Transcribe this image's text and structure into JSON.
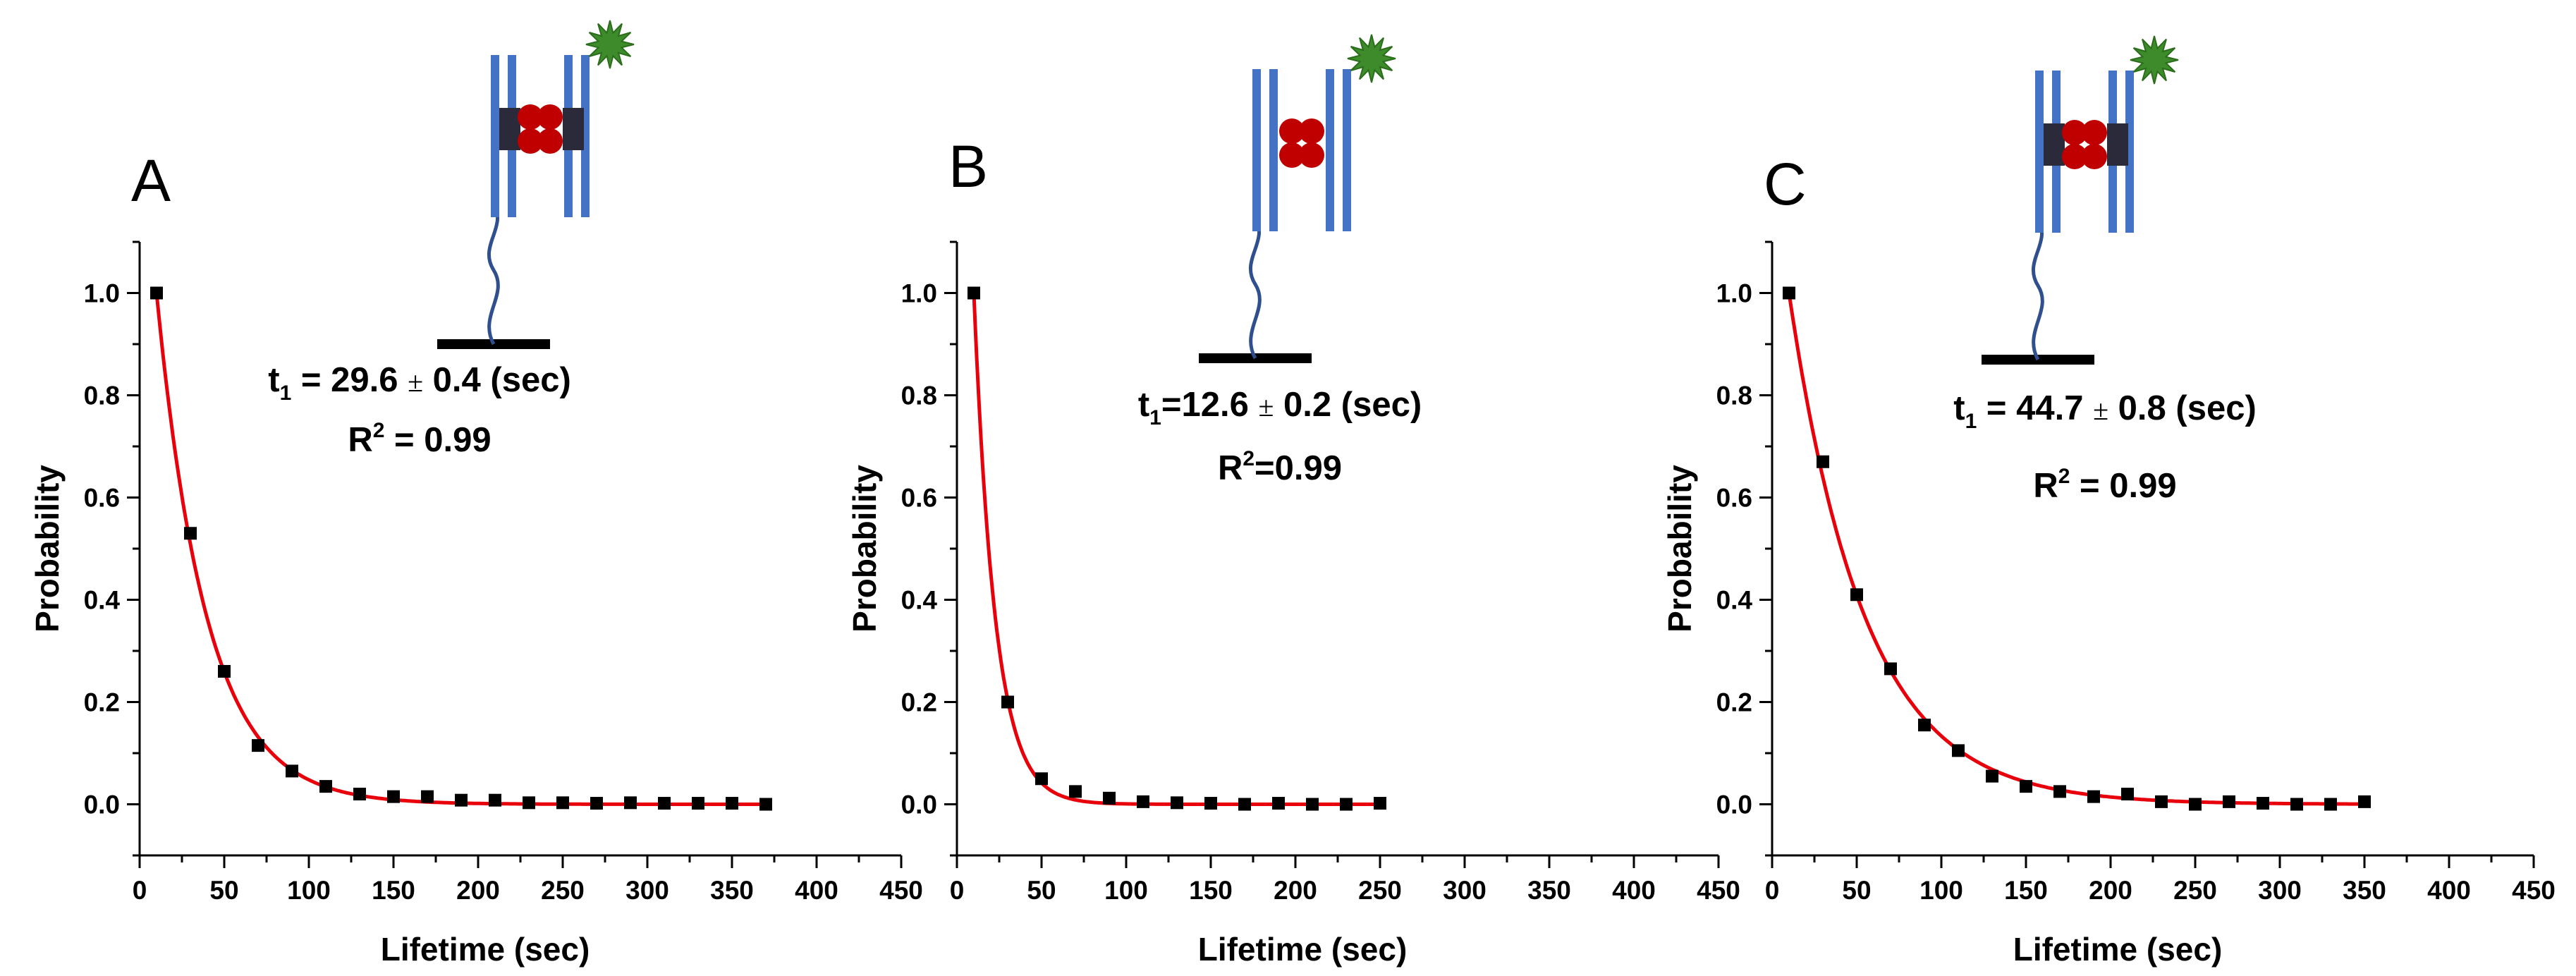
{
  "colors": {
    "fit": "#e8000b",
    "points": "#000000",
    "dna": "#4472c4",
    "protein": "#c00000",
    "tether": "#2f4f8f",
    "dye": "#3d8b2a",
    "block": "#2a2a3a"
  },
  "chart_data": [
    {
      "type": "scatter",
      "panel": "A",
      "xlabel": "Lifetime (sec)",
      "ylabel": "Probability",
      "xlim": [
        0,
        450
      ],
      "ylim": [
        -0.1,
        1.1
      ],
      "xticks": [
        0,
        50,
        100,
        150,
        200,
        250,
        300,
        350,
        400,
        450
      ],
      "yticks": [
        0.0,
        0.2,
        0.4,
        0.6,
        0.8,
        1.0
      ],
      "x": [
        10,
        30,
        50,
        70,
        90,
        110,
        130,
        150,
        170,
        190,
        210,
        230,
        250,
        270,
        290,
        310,
        330,
        350,
        370
      ],
      "y": [
        1.0,
        0.53,
        0.26,
        0.115,
        0.065,
        0.035,
        0.02,
        0.015,
        0.015,
        0.008,
        0.008,
        0.003,
        0.003,
        0.002,
        0.003,
        0.002,
        0.002,
        0.002,
        0.0
      ],
      "fit": {
        "model": "exponential decay",
        "tau": 29.6,
        "x0": 10,
        "x_end": 370
      },
      "annotation": {
        "t": "t",
        "sub": "1",
        "pre": " = 29.6 ",
        "pm": "±",
        "post": " 0.4 (sec)",
        "r2": "R",
        "r2_sup": "2",
        "r2_val": " = 0.99"
      },
      "schematic": {
        "inner_blocks": true
      }
    },
    {
      "type": "scatter",
      "panel": "B",
      "xlabel": "Lifetime (sec)",
      "ylabel": "Probability",
      "xlim": [
        0,
        450
      ],
      "ylim": [
        -0.1,
        1.1
      ],
      "xticks": [
        0,
        50,
        100,
        150,
        200,
        250,
        300,
        350,
        400,
        450
      ],
      "yticks": [
        0.0,
        0.2,
        0.4,
        0.6,
        0.8,
        1.0
      ],
      "x": [
        10,
        30,
        50,
        70,
        90,
        110,
        130,
        150,
        170,
        190,
        210,
        230,
        250
      ],
      "y": [
        1.0,
        0.2,
        0.05,
        0.025,
        0.012,
        0.005,
        0.003,
        0.002,
        0.0,
        0.002,
        0.0,
        0.0,
        0.002
      ],
      "fit": {
        "model": "exponential decay",
        "tau": 12.6,
        "x0": 10,
        "x_end": 250
      },
      "annotation": {
        "t": "t",
        "sub": "1",
        "pre": "=12.6 ",
        "pm": "±",
        "post": " 0.2  (sec)",
        "r2": "R",
        "r2_sup": "2",
        "r2_val": "=0.99"
      },
      "schematic": {
        "inner_blocks": false
      }
    },
    {
      "type": "scatter",
      "panel": "C",
      "xlabel": "Lifetime (sec)",
      "ylabel": "Probability",
      "xlim": [
        0,
        450
      ],
      "ylim": [
        -0.1,
        1.1
      ],
      "xticks": [
        0,
        50,
        100,
        150,
        200,
        250,
        300,
        350,
        400,
        450
      ],
      "yticks": [
        0.0,
        0.2,
        0.4,
        0.6,
        0.8,
        1.0
      ],
      "x": [
        10,
        30,
        50,
        70,
        90,
        110,
        130,
        150,
        170,
        190,
        210,
        230,
        250,
        270,
        290,
        310,
        330,
        350
      ],
      "y": [
        1.0,
        0.67,
        0.41,
        0.265,
        0.155,
        0.105,
        0.055,
        0.035,
        0.025,
        0.015,
        0.02,
        0.005,
        0.0,
        0.005,
        0.002,
        0.0,
        0.0,
        0.005
      ],
      "fit": {
        "model": "exponential decay",
        "tau": 44.7,
        "x0": 10,
        "x_end": 350
      },
      "annotation": {
        "t": "t",
        "sub": "1",
        "pre": " = 44.7 ",
        "pm": "±",
        "post": " 0.8 (sec)",
        "r2": "R",
        "r2_sup": "2",
        "r2_val": " = 0.99"
      },
      "schematic": {
        "inner_blocks": true
      }
    }
  ]
}
